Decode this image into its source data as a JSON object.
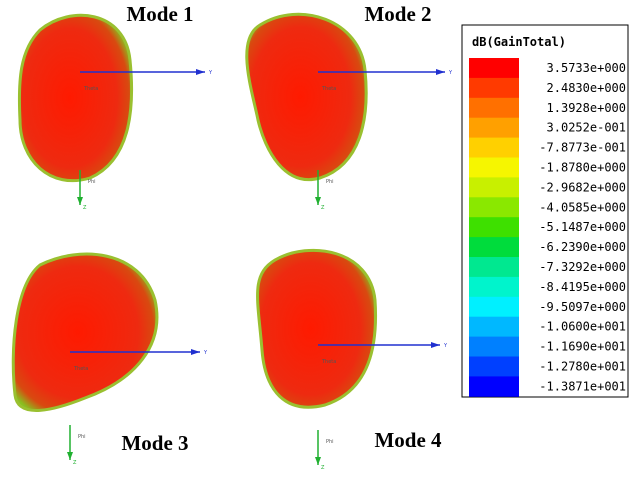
{
  "panels": [
    {
      "title": "Mode 1"
    },
    {
      "title": "Mode 2"
    },
    {
      "title": "Mode 3"
    },
    {
      "title": "Mode 4"
    }
  ],
  "axes": {
    "y": "Y",
    "z": "Z",
    "phi": "Phi",
    "theta": "Theta"
  },
  "legend": {
    "title": "dB(GainTotal)",
    "entries": [
      {
        "label": "3.5733e+000",
        "color": "#ff0000"
      },
      {
        "label": "2.4830e+000",
        "color": "#ff3a00"
      },
      {
        "label": "1.3928e+000",
        "color": "#ff7000"
      },
      {
        "label": "3.0252e-001",
        "color": "#ffa000"
      },
      {
        "label": "-7.8773e-001",
        "color": "#ffd000"
      },
      {
        "label": "-1.8780e+000",
        "color": "#f6f600"
      },
      {
        "label": "-2.9682e+000",
        "color": "#c8f000"
      },
      {
        "label": "-4.0585e+000",
        "color": "#8ae800"
      },
      {
        "label": "-5.1487e+000",
        "color": "#3ee000"
      },
      {
        "label": "-6.2390e+000",
        "color": "#00dc3c"
      },
      {
        "label": "-7.3292e+000",
        "color": "#00e890"
      },
      {
        "label": "-8.4195e+000",
        "color": "#00f4cc"
      },
      {
        "label": "-9.5097e+000",
        "color": "#00f0ff"
      },
      {
        "label": "-1.0600e+001",
        "color": "#00b8ff"
      },
      {
        "label": "-1.1690e+001",
        "color": "#0080ff"
      },
      {
        "label": "-1.2780e+001",
        "color": "#0040ff"
      },
      {
        "label": "-1.3871e+001",
        "color": "#0000ff"
      }
    ]
  }
}
